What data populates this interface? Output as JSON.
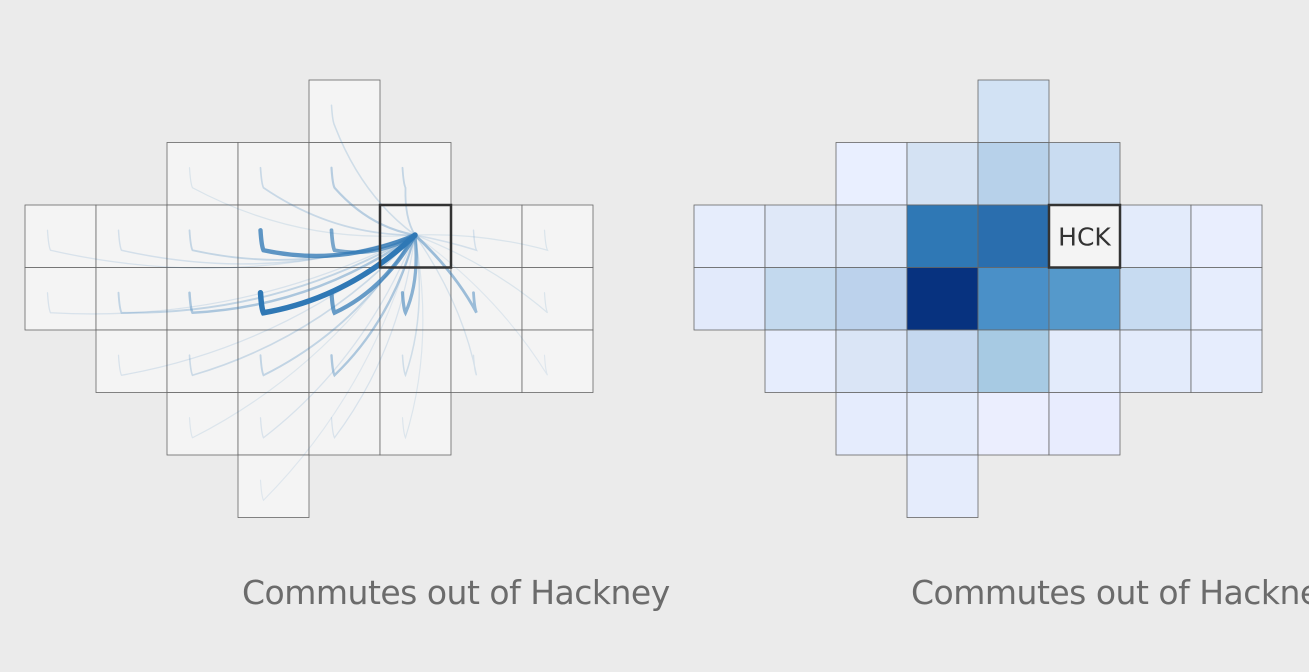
{
  "colors": {
    "background": "#ebebeb",
    "cell_fill": "#f4f4f4",
    "cell_stroke": "#666666",
    "highlight_stroke": "#333333",
    "flow_stroke": "#2f78b5",
    "caption_text": "#6b6b6b"
  },
  "highlight": {
    "row": 2,
    "col": 5,
    "label": "HCK"
  },
  "grid": {
    "rows": [
      {
        "cols": [
          4
        ]
      },
      {
        "cols": [
          2,
          3,
          4,
          5
        ]
      },
      {
        "cols": [
          0,
          1,
          2,
          3,
          4,
          5,
          6,
          7
        ]
      },
      {
        "cols": [
          0,
          1,
          2,
          3,
          4,
          5,
          6,
          7
        ]
      },
      {
        "cols": [
          1,
          2,
          3,
          4,
          5,
          6,
          7
        ]
      },
      {
        "cols": [
          2,
          3,
          4,
          5
        ]
      },
      {
        "cols": [
          3
        ]
      }
    ]
  },
  "flows": [
    {
      "row": 3,
      "col": 3,
      "weight": 1.0
    },
    {
      "row": 2,
      "col": 3,
      "weight": 0.75
    },
    {
      "row": 3,
      "col": 4,
      "weight": 0.7
    },
    {
      "row": 2,
      "col": 4,
      "weight": 0.6
    },
    {
      "row": 3,
      "col": 5,
      "weight": 0.5
    },
    {
      "row": 3,
      "col": 6,
      "weight": 0.4
    },
    {
      "row": 3,
      "col": 2,
      "weight": 0.32
    },
    {
      "row": 4,
      "col": 4,
      "weight": 0.3
    },
    {
      "row": 1,
      "col": 4,
      "weight": 0.25
    },
    {
      "row": 3,
      "col": 1,
      "weight": 0.2
    },
    {
      "row": 4,
      "col": 3,
      "weight": 0.2
    },
    {
      "row": 2,
      "col": 2,
      "weight": 0.18
    },
    {
      "row": 1,
      "col": 5,
      "weight": 0.18
    },
    {
      "row": 1,
      "col": 3,
      "weight": 0.15
    },
    {
      "row": 4,
      "col": 2,
      "weight": 0.14
    },
    {
      "row": 0,
      "col": 4,
      "weight": 0.12
    },
    {
      "row": 4,
      "col": 5,
      "weight": 0.12
    },
    {
      "row": 2,
      "col": 1,
      "weight": 0.1
    },
    {
      "row": 2,
      "col": 6,
      "weight": 0.1
    },
    {
      "row": 4,
      "col": 6,
      "weight": 0.08
    },
    {
      "row": 2,
      "col": 0,
      "weight": 0.07
    },
    {
      "row": 3,
      "col": 0,
      "weight": 0.07
    },
    {
      "row": 5,
      "col": 3,
      "weight": 0.07
    },
    {
      "row": 5,
      "col": 4,
      "weight": 0.06
    },
    {
      "row": 4,
      "col": 1,
      "weight": 0.06
    },
    {
      "row": 1,
      "col": 2,
      "weight": 0.05
    },
    {
      "row": 2,
      "col": 7,
      "weight": 0.05
    },
    {
      "row": 3,
      "col": 7,
      "weight": 0.05
    },
    {
      "row": 5,
      "col": 2,
      "weight": 0.04
    },
    {
      "row": 5,
      "col": 5,
      "weight": 0.04
    },
    {
      "row": 6,
      "col": 3,
      "weight": 0.03
    },
    {
      "row": 4,
      "col": 7,
      "weight": 0.03
    }
  ],
  "choropleth": [
    {
      "row": 0,
      "col": 4,
      "color": "#d2e2f4"
    },
    {
      "row": 1,
      "col": 2,
      "color": "#e9efff"
    },
    {
      "row": 1,
      "col": 3,
      "color": "#d4e2f3"
    },
    {
      "row": 1,
      "col": 4,
      "color": "#b7d1ea"
    },
    {
      "row": 1,
      "col": 5,
      "color": "#c9dcf1"
    },
    {
      "row": 2,
      "col": 0,
      "color": "#e6edfc"
    },
    {
      "row": 2,
      "col": 1,
      "color": "#dfe8f8"
    },
    {
      "row": 2,
      "col": 2,
      "color": "#dce6f6"
    },
    {
      "row": 2,
      "col": 3,
      "color": "#2f78b5"
    },
    {
      "row": 2,
      "col": 4,
      "color": "#2a6eae"
    },
    {
      "row": 2,
      "col": 6,
      "color": "#e3ebfb"
    },
    {
      "row": 2,
      "col": 7,
      "color": "#e9eefe"
    },
    {
      "row": 3,
      "col": 0,
      "color": "#e2eafb"
    },
    {
      "row": 3,
      "col": 1,
      "color": "#c3d9ee"
    },
    {
      "row": 3,
      "col": 2,
      "color": "#bcd2ec"
    },
    {
      "row": 3,
      "col": 3,
      "color": "#07327f"
    },
    {
      "row": 3,
      "col": 4,
      "color": "#4a90c8"
    },
    {
      "row": 3,
      "col": 5,
      "color": "#5599cb"
    },
    {
      "row": 3,
      "col": 6,
      "color": "#c7dbf1"
    },
    {
      "row": 3,
      "col": 7,
      "color": "#e6edfd"
    },
    {
      "row": 4,
      "col": 1,
      "color": "#e6edfd"
    },
    {
      "row": 4,
      "col": 2,
      "color": "#dae5f6"
    },
    {
      "row": 4,
      "col": 3,
      "color": "#c5d8ef"
    },
    {
      "row": 4,
      "col": 4,
      "color": "#a7cae3"
    },
    {
      "row": 4,
      "col": 5,
      "color": "#e3ebfb"
    },
    {
      "row": 4,
      "col": 6,
      "color": "#e3ebfb"
    },
    {
      "row": 4,
      "col": 7,
      "color": "#e6edfd"
    },
    {
      "row": 5,
      "col": 2,
      "color": "#e5ecfd"
    },
    {
      "row": 5,
      "col": 3,
      "color": "#e4ecfc"
    },
    {
      "row": 5,
      "col": 4,
      "color": "#ebeefe"
    },
    {
      "row": 5,
      "col": 5,
      "color": "#e8ecfe"
    },
    {
      "row": 6,
      "col": 3,
      "color": "#e5ecfc"
    }
  ],
  "left_panel": {
    "caption": "Commutes out of Hackney"
  },
  "right_panel": {
    "caption": "Commutes out of Hackney"
  }
}
